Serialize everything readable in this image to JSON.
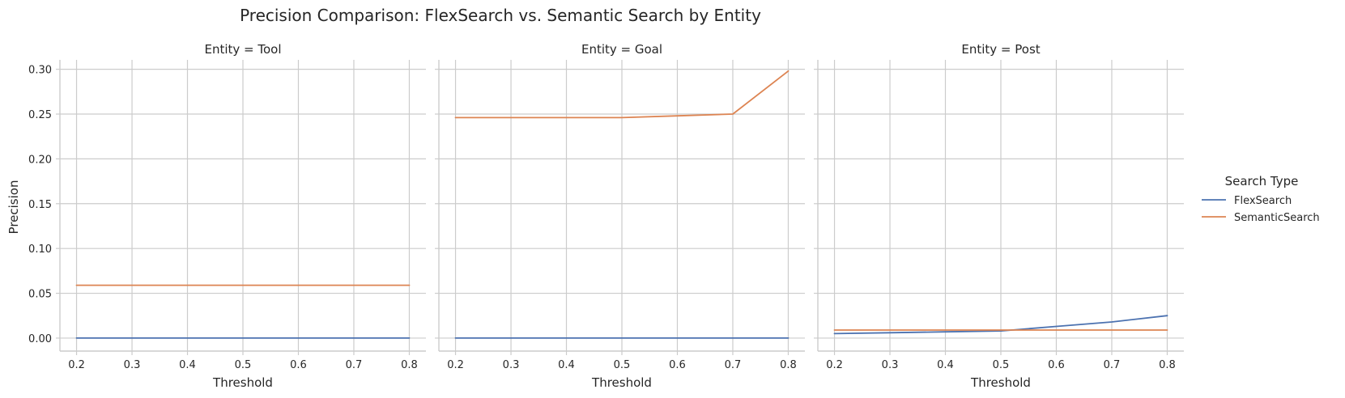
{
  "chart_data": {
    "type": "line",
    "title": "Precision Comparison: FlexSearch vs. Semantic Search by Entity",
    "xlabel": "Threshold",
    "ylabel": "Precision",
    "x": [
      0.2,
      0.3,
      0.4,
      0.5,
      0.6,
      0.7,
      0.8
    ],
    "x_ticks": [
      "0.2",
      "0.3",
      "0.4",
      "0.5",
      "0.6",
      "0.7",
      "0.8"
    ],
    "xlim": [
      0.17,
      0.83
    ],
    "y_ticks": [
      "0.00",
      "0.05",
      "0.10",
      "0.15",
      "0.20",
      "0.25",
      "0.30"
    ],
    "ylim": [
      -0.0145,
      0.3105
    ],
    "grid": true,
    "legend": {
      "title": "Search Type",
      "placement": "right",
      "entries": [
        "FlexSearch",
        "SemanticSearch"
      ]
    },
    "colors": {
      "FlexSearch": "#4c72b0",
      "SemanticSearch": "#dd8452"
    },
    "facets": [
      {
        "title": "Entity = Tool",
        "series": [
          {
            "name": "FlexSearch",
            "values": [
              0.0,
              0.0,
              0.0,
              0.0,
              0.0,
              0.0,
              0.0
            ]
          },
          {
            "name": "SemanticSearch",
            "values": [
              0.059,
              0.059,
              0.059,
              0.059,
              0.059,
              0.059,
              0.059
            ]
          }
        ]
      },
      {
        "title": "Entity = Goal",
        "series": [
          {
            "name": "FlexSearch",
            "values": [
              0.0,
              0.0,
              0.0,
              0.0,
              0.0,
              0.0,
              0.0
            ]
          },
          {
            "name": "SemanticSearch",
            "values": [
              0.246,
              0.246,
              0.246,
              0.246,
              0.248,
              0.25,
              0.298
            ]
          }
        ]
      },
      {
        "title": "Entity = Post",
        "series": [
          {
            "name": "FlexSearch",
            "values": [
              0.005,
              0.006,
              0.007,
              0.008,
              0.013,
              0.018,
              0.025
            ]
          },
          {
            "name": "SemanticSearch",
            "values": [
              0.009,
              0.009,
              0.009,
              0.009,
              0.009,
              0.009,
              0.009
            ]
          }
        ]
      }
    ]
  }
}
